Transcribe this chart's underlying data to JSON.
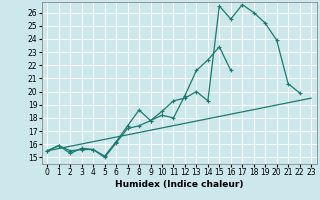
{
  "title": "",
  "xlabel": "Humidex (Indice chaleur)",
  "ylabel": "",
  "bg_color": "#cce8ec",
  "grid_color": "#ffffff",
  "line_color": "#1a7a6e",
  "xlim": [
    -0.5,
    23.5
  ],
  "ylim": [
    14.5,
    26.8
  ],
  "xticks": [
    0,
    1,
    2,
    3,
    4,
    5,
    6,
    7,
    8,
    9,
    10,
    11,
    12,
    13,
    14,
    15,
    16,
    17,
    18,
    19,
    20,
    21,
    22,
    23
  ],
  "yticks": [
    15,
    16,
    17,
    18,
    19,
    20,
    21,
    22,
    23,
    24,
    25,
    26
  ],
  "line1_x": [
    0,
    1,
    2,
    3,
    4,
    5,
    6,
    7,
    8,
    9,
    10,
    11,
    12,
    13,
    14,
    15,
    16,
    17,
    18,
    19,
    20,
    21,
    22
  ],
  "line1_y": [
    15.5,
    15.9,
    15.5,
    15.6,
    15.6,
    15.0,
    16.1,
    17.2,
    17.4,
    17.8,
    18.5,
    19.3,
    19.5,
    20.0,
    19.3,
    26.5,
    25.5,
    26.6,
    26.0,
    25.2,
    23.9,
    20.6,
    19.9
  ],
  "line2_x": [
    0,
    1,
    2,
    3,
    4,
    5,
    6,
    7,
    8,
    9,
    10,
    11,
    12,
    13,
    14,
    15,
    16
  ],
  "line2_y": [
    15.5,
    15.9,
    15.3,
    15.7,
    15.6,
    15.1,
    16.2,
    17.4,
    18.6,
    17.8,
    18.2,
    18.0,
    19.7,
    21.6,
    22.4,
    23.4,
    21.6
  ],
  "line3_x": [
    0,
    23
  ],
  "line3_y": [
    15.5,
    19.5
  ],
  "tick_fontsize": 5.5,
  "xlabel_fontsize": 6.5
}
